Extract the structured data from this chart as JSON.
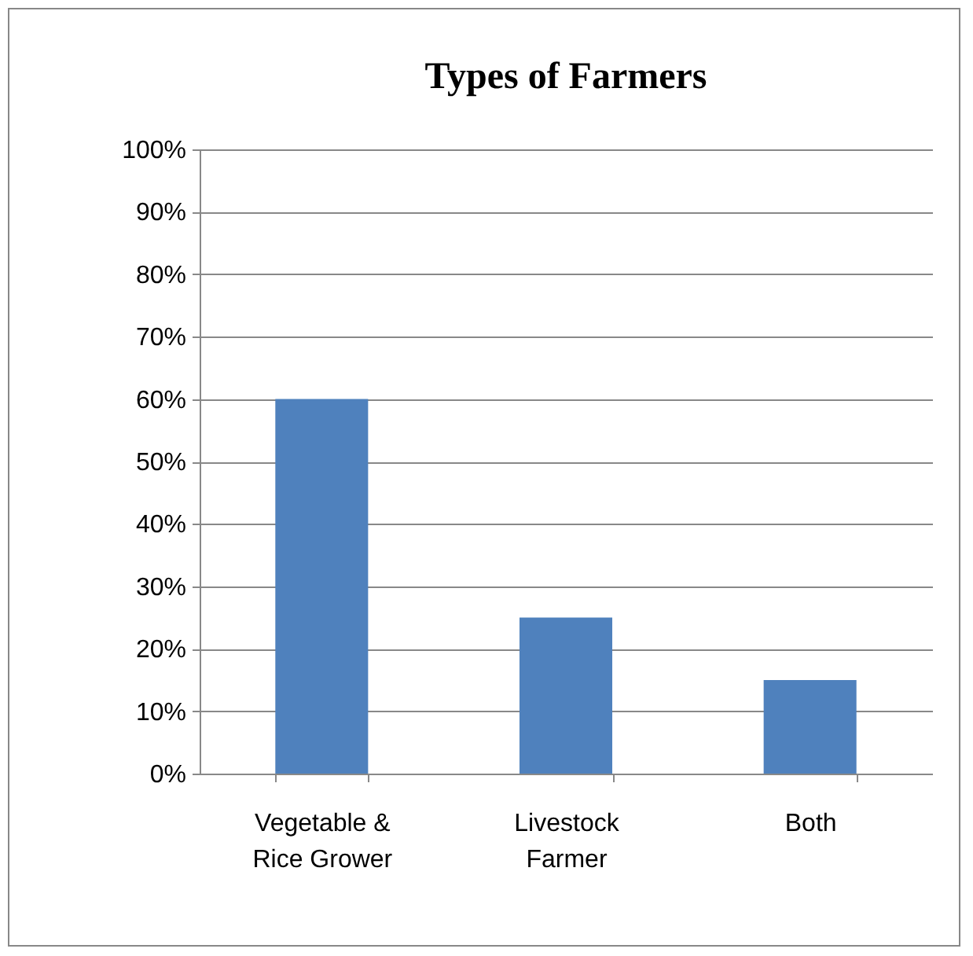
{
  "chart_data": {
    "type": "bar",
    "title": "Types of Farmers",
    "categories": [
      "Vegetable & Rice Grower",
      "Livestock Farmer",
      "Both"
    ],
    "values": [
      60,
      25,
      15
    ],
    "color": "#4f81bd",
    "ylim": [
      0,
      100
    ],
    "yticks": [
      {
        "value": 0,
        "label": "0%"
      },
      {
        "value": 10,
        "label": "10%"
      },
      {
        "value": 20,
        "label": "20%"
      },
      {
        "value": 30,
        "label": "30%"
      },
      {
        "value": 40,
        "label": "40%"
      },
      {
        "value": 50,
        "label": "50%"
      },
      {
        "value": 60,
        "label": "60%"
      },
      {
        "value": 70,
        "label": "70%"
      },
      {
        "value": 80,
        "label": "80%"
      },
      {
        "value": 90,
        "label": "90%"
      },
      {
        "value": 100,
        "label": "100%"
      }
    ],
    "grid": "y"
  }
}
